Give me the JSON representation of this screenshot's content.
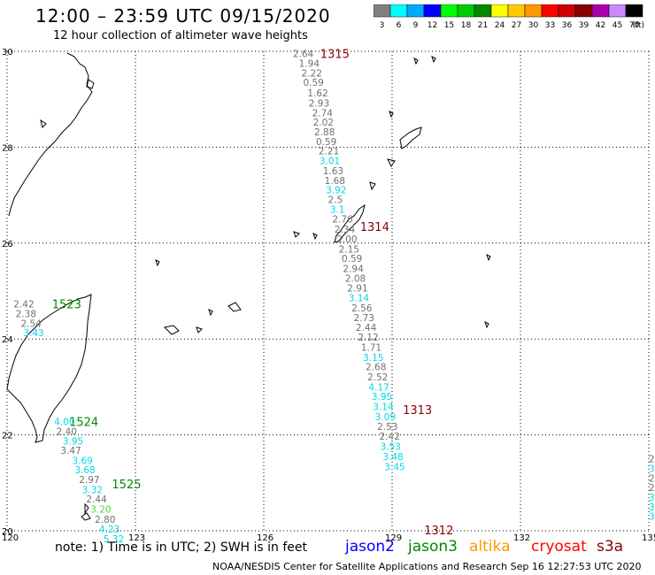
{
  "header": {
    "title": "12:00 – 23:59 UTC 09/15/2020",
    "subtitle": "12 hour collection of altimeter wave heights"
  },
  "colorbar": {
    "labels": [
      "3",
      "6",
      "9",
      "12",
      "15",
      "18",
      "21",
      "24",
      "27",
      "30",
      "33",
      "36",
      "39",
      "42",
      "45",
      "70"
    ],
    "unit": "(ft)",
    "colors": [
      "#808080",
      "#00ffff",
      "#00aaff",
      "#0000ff",
      "#00ff00",
      "#00cc00",
      "#008800",
      "#ffff00",
      "#ffcc00",
      "#ff9900",
      "#ff0000",
      "#cc0000",
      "#880000",
      "#aa00aa",
      "#cc88ff",
      "#000000"
    ]
  },
  "axes": {
    "lon_labels": [
      "120",
      "123",
      "126",
      "129",
      "132",
      "135"
    ],
    "lat_labels": [
      "30",
      "28",
      "26",
      "24",
      "22",
      "20"
    ]
  },
  "legend": {
    "note": "note: 1) Time is in UTC; 2) SWH is in feet",
    "satellites": [
      {
        "name": "jason2",
        "color": "#0000ff"
      },
      {
        "name": "jason3",
        "color": "#008800"
      },
      {
        "name": "altika",
        "color": "#ff9900"
      },
      {
        "name": "cryosat",
        "color": "#ff0000"
      },
      {
        "name": "s3a",
        "color": "#880000"
      }
    ],
    "credit": "NOAA/NESDIS Center for Satellite Applications and Research    Sep 16 12:27:53 UTC 2020"
  },
  "track_colors": {
    "s3a": "#880000",
    "gray": "#707070",
    "cyan": "#00d8e8",
    "green": "#008800",
    "lightgreen": "#44dd44"
  },
  "pass_labels": [
    {
      "text": "1315",
      "color": "s3a",
      "lon": 127.32,
      "lat": 29.95
    },
    {
      "text": "1314",
      "color": "s3a",
      "lon": 128.25,
      "lat": 26.35
    },
    {
      "text": "1313",
      "color": "s3a",
      "lon": 129.25,
      "lat": 22.53
    },
    {
      "text": "1312",
      "color": "s3a",
      "lon": 129.75,
      "lat": 20.02
    },
    {
      "text": "1523",
      "color": "green",
      "lon": 121.05,
      "lat": 24.73
    },
    {
      "text": "1524",
      "color": "green",
      "lon": 121.45,
      "lat": 22.28
    },
    {
      "text": "1525",
      "color": "green",
      "lon": 122.45,
      "lat": 20.98
    }
  ],
  "wave_heights": [
    {
      "text": "2.64",
      "color": "gray",
      "lon": 126.68,
      "lat": 29.95
    },
    {
      "text": "1.94",
      "color": "gray",
      "lon": 126.82,
      "lat": 29.75
    },
    {
      "text": "2.22",
      "color": "gray",
      "lon": 126.88,
      "lat": 29.55
    },
    {
      "text": "0.59",
      "color": "gray",
      "lon": 126.92,
      "lat": 29.35
    },
    {
      "text": "1.62",
      "color": "gray",
      "lon": 127.02,
      "lat": 29.13
    },
    {
      "text": "2.93",
      "color": "gray",
      "lon": 127.05,
      "lat": 28.92
    },
    {
      "text": "2.74",
      "color": "gray",
      "lon": 127.13,
      "lat": 28.72
    },
    {
      "text": "2.02",
      "color": "gray",
      "lon": 127.15,
      "lat": 28.52
    },
    {
      "text": "2.88",
      "color": "gray",
      "lon": 127.18,
      "lat": 28.32
    },
    {
      "text": "0.59",
      "color": "gray",
      "lon": 127.22,
      "lat": 28.12
    },
    {
      "text": "2.21",
      "color": "gray",
      "lon": 127.28,
      "lat": 27.92
    },
    {
      "text": "3.01",
      "color": "cyan",
      "lon": 127.3,
      "lat": 27.72
    },
    {
      "text": "1.63",
      "color": "gray",
      "lon": 127.38,
      "lat": 27.51
    },
    {
      "text": "1.68",
      "color": "gray",
      "lon": 127.42,
      "lat": 27.31
    },
    {
      "text": "3.92",
      "color": "cyan",
      "lon": 127.45,
      "lat": 27.11
    },
    {
      "text": "2.5",
      "color": "gray",
      "lon": 127.5,
      "lat": 26.91
    },
    {
      "text": "3.1",
      "color": "cyan",
      "lon": 127.55,
      "lat": 26.71
    },
    {
      "text": "2.76",
      "color": "gray",
      "lon": 127.6,
      "lat": 26.5
    },
    {
      "text": "2.34",
      "color": "gray",
      "lon": 127.65,
      "lat": 26.29
    },
    {
      "text": "2.00",
      "color": "gray",
      "lon": 127.7,
      "lat": 26.09
    },
    {
      "text": "2.15",
      "color": "gray",
      "lon": 127.75,
      "lat": 25.88
    },
    {
      "text": "0.59",
      "color": "gray",
      "lon": 127.82,
      "lat": 25.68
    },
    {
      "text": "2.94",
      "color": "gray",
      "lon": 127.85,
      "lat": 25.47
    },
    {
      "text": "2.08",
      "color": "gray",
      "lon": 127.9,
      "lat": 25.27
    },
    {
      "text": "2.91",
      "color": "gray",
      "lon": 127.95,
      "lat": 25.06
    },
    {
      "text": "3.14",
      "color": "cyan",
      "lon": 127.98,
      "lat": 24.86
    },
    {
      "text": "2.56",
      "color": "gray",
      "lon": 128.05,
      "lat": 24.65
    },
    {
      "text": "2.73",
      "color": "gray",
      "lon": 128.1,
      "lat": 24.45
    },
    {
      "text": "2.44",
      "color": "gray",
      "lon": 128.15,
      "lat": 24.24
    },
    {
      "text": "2.12",
      "color": "gray",
      "lon": 128.2,
      "lat": 24.04
    },
    {
      "text": "1.71",
      "color": "gray",
      "lon": 128.27,
      "lat": 23.83
    },
    {
      "text": "3.15",
      "color": "cyan",
      "lon": 128.32,
      "lat": 23.62
    },
    {
      "text": "2.68",
      "color": "gray",
      "lon": 128.38,
      "lat": 23.42
    },
    {
      "text": "2.52",
      "color": "gray",
      "lon": 128.42,
      "lat": 23.21
    },
    {
      "text": "4.17",
      "color": "cyan",
      "lon": 128.45,
      "lat": 23.0
    },
    {
      "text": "3.95",
      "color": "cyan",
      "lon": 128.52,
      "lat": 22.8
    },
    {
      "text": "3.14",
      "color": "cyan",
      "lon": 128.55,
      "lat": 22.59
    },
    {
      "text": "3.09",
      "color": "cyan",
      "lon": 128.6,
      "lat": 22.38
    },
    {
      "text": "2.53",
      "color": "gray",
      "lon": 128.65,
      "lat": 22.18
    },
    {
      "text": "2.42",
      "color": "gray",
      "lon": 128.7,
      "lat": 21.97
    },
    {
      "text": "3.53",
      "color": "cyan",
      "lon": 128.72,
      "lat": 21.76
    },
    {
      "text": "3.48",
      "color": "cyan",
      "lon": 128.78,
      "lat": 21.55
    },
    {
      "text": "3.45",
      "color": "cyan",
      "lon": 128.82,
      "lat": 21.34
    },
    {
      "text": "2.42",
      "color": "gray",
      "lon": 120.15,
      "lat": 24.73
    },
    {
      "text": "2.38",
      "color": "gray",
      "lon": 120.2,
      "lat": 24.53
    },
    {
      "text": "2.54",
      "color": "gray",
      "lon": 120.32,
      "lat": 24.33
    },
    {
      "text": "3.43",
      "color": "cyan",
      "lon": 120.38,
      "lat": 24.13
    },
    {
      "text": "4.00",
      "color": "cyan",
      "lon": 121.1,
      "lat": 22.28
    },
    {
      "text": "2.40",
      "color": "gray",
      "lon": 121.15,
      "lat": 22.08
    },
    {
      "text": "3.95",
      "color": "cyan",
      "lon": 121.3,
      "lat": 21.87
    },
    {
      "text": "3.47",
      "color": "gray",
      "lon": 121.25,
      "lat": 21.68
    },
    {
      "text": "3.69",
      "color": "cyan",
      "lon": 121.52,
      "lat": 21.47
    },
    {
      "text": "3.68",
      "color": "cyan",
      "lon": 121.58,
      "lat": 21.27
    },
    {
      "text": "2.97",
      "color": "gray",
      "lon": 121.68,
      "lat": 21.07
    },
    {
      "text": "3.32",
      "color": "cyan",
      "lon": 121.75,
      "lat": 20.86
    },
    {
      "text": "2.44",
      "color": "gray",
      "lon": 121.85,
      "lat": 20.66
    },
    {
      "text": "3.20",
      "color": "lightgreen",
      "lon": 121.95,
      "lat": 20.45
    },
    {
      "text": "2.80",
      "color": "gray",
      "lon": 122.05,
      "lat": 20.24
    },
    {
      "text": "4.23",
      "color": "cyan",
      "lon": 122.15,
      "lat": 20.04
    },
    {
      "text": "5.32",
      "color": "cyan",
      "lon": 122.25,
      "lat": 19.83
    },
    {
      "text": "2.",
      "color": "gray",
      "lon": 135.0,
      "lat": 21.5
    },
    {
      "text": "3.",
      "color": "cyan",
      "lon": 135.0,
      "lat": 21.3
    },
    {
      "text": "2.",
      "color": "gray",
      "lon": 135.0,
      "lat": 21.1
    },
    {
      "text": "2.",
      "color": "gray",
      "lon": 135.0,
      "lat": 20.9
    },
    {
      "text": "3.",
      "color": "cyan",
      "lon": 135.0,
      "lat": 20.7
    },
    {
      "text": "3.",
      "color": "cyan",
      "lon": 135.0,
      "lat": 20.5
    },
    {
      "text": "3.",
      "color": "cyan",
      "lon": 135.0,
      "lat": 20.3
    }
  ]
}
